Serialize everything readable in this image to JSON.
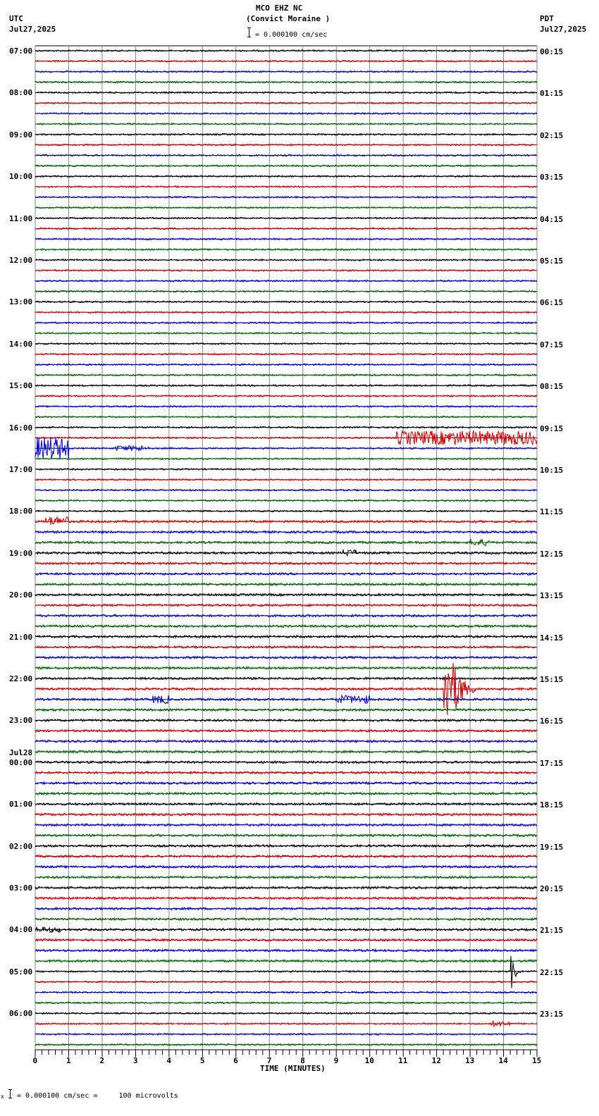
{
  "header": {
    "station": "MCO EHZ NC",
    "location": "(Convict Moraine )",
    "scale_text": "= 0.000100 cm/sec",
    "left_tz": "UTC",
    "left_date": "Jul27,2025",
    "right_tz": "PDT",
    "right_date": "Jul27,2025"
  },
  "footer": {
    "scale_prefix": "x",
    "scale_text": "= 0.000100 cm/sec =     100 microvolts"
  },
  "chart_data": {
    "type": "line",
    "title": "MCO EHZ NC (Convict Moraine ) helicorder",
    "xlabel": "TIME (MINUTES)",
    "ylabel": "",
    "xlim": [
      0,
      15
    ],
    "x_ticks": [
      "0",
      "1",
      "2",
      "3",
      "4",
      "5",
      "6",
      "7",
      "8",
      "9",
      "10",
      "11",
      "12",
      "13",
      "14",
      "15"
    ],
    "traces_per_hour": 4,
    "minutes_per_trace": 15,
    "trace_colors": [
      "#000000",
      "#cc0000",
      "#0000cc",
      "#006400"
    ],
    "left_labels": [
      {
        "row": 0,
        "text": "07:00"
      },
      {
        "row": 4,
        "text": "08:00"
      },
      {
        "row": 8,
        "text": "09:00"
      },
      {
        "row": 12,
        "text": "10:00"
      },
      {
        "row": 16,
        "text": "11:00"
      },
      {
        "row": 20,
        "text": "12:00"
      },
      {
        "row": 24,
        "text": "13:00"
      },
      {
        "row": 28,
        "text": "14:00"
      },
      {
        "row": 32,
        "text": "15:00"
      },
      {
        "row": 36,
        "text": "16:00"
      },
      {
        "row": 40,
        "text": "17:00"
      },
      {
        "row": 44,
        "text": "18:00"
      },
      {
        "row": 48,
        "text": "19:00"
      },
      {
        "row": 52,
        "text": "20:00"
      },
      {
        "row": 56,
        "text": "21:00"
      },
      {
        "row": 60,
        "text": "22:00"
      },
      {
        "row": 64,
        "text": "23:00"
      },
      {
        "row": 68,
        "text": "00:00",
        "date": "Jul28"
      },
      {
        "row": 72,
        "text": "01:00"
      },
      {
        "row": 76,
        "text": "02:00"
      },
      {
        "row": 80,
        "text": "03:00"
      },
      {
        "row": 84,
        "text": "04:00"
      },
      {
        "row": 88,
        "text": "05:00"
      },
      {
        "row": 92,
        "text": "06:00"
      }
    ],
    "right_labels": [
      {
        "row": 0,
        "text": "00:15"
      },
      {
        "row": 4,
        "text": "01:15"
      },
      {
        "row": 8,
        "text": "02:15"
      },
      {
        "row": 12,
        "text": "03:15"
      },
      {
        "row": 16,
        "text": "04:15"
      },
      {
        "row": 20,
        "text": "05:15"
      },
      {
        "row": 24,
        "text": "06:15"
      },
      {
        "row": 28,
        "text": "07:15"
      },
      {
        "row": 32,
        "text": "08:15"
      },
      {
        "row": 36,
        "text": "09:15"
      },
      {
        "row": 40,
        "text": "10:15"
      },
      {
        "row": 44,
        "text": "11:15"
      },
      {
        "row": 48,
        "text": "12:15"
      },
      {
        "row": 52,
        "text": "13:15"
      },
      {
        "row": 56,
        "text": "14:15"
      },
      {
        "row": 60,
        "text": "15:15"
      },
      {
        "row": 64,
        "text": "16:15"
      },
      {
        "row": 68,
        "text": "17:15"
      },
      {
        "row": 72,
        "text": "18:15"
      },
      {
        "row": 76,
        "text": "19:15"
      },
      {
        "row": 80,
        "text": "20:15"
      },
      {
        "row": 84,
        "text": "21:15"
      },
      {
        "row": 88,
        "text": "22:15"
      },
      {
        "row": 92,
        "text": "23:15"
      }
    ],
    "events": [
      {
        "row": 37,
        "start_min": 10.8,
        "end_min": 15.0,
        "amp": 10,
        "note": "red burst 16:15 UTC"
      },
      {
        "row": 38,
        "start_min": 0.0,
        "end_min": 1.0,
        "amp": 16,
        "note": "large blue burst 16:30 UTC"
      },
      {
        "row": 38,
        "start_min": 2.4,
        "end_min": 3.4,
        "amp": 4
      },
      {
        "row": 45,
        "start_min": 0.3,
        "end_min": 1.0,
        "amp": 7
      },
      {
        "row": 61,
        "start_min": 12.2,
        "end_min": 13.2,
        "amp": 60,
        "note": "local earthquake ~22:30 UTC"
      },
      {
        "row": 62,
        "start_min": 9.0,
        "end_min": 10.0,
        "amp": 6
      },
      {
        "row": 62,
        "start_min": 3.5,
        "end_min": 4.0,
        "amp": 6
      },
      {
        "row": 88,
        "start_min": 14.2,
        "end_min": 14.5,
        "amp": 30,
        "note": "spike ~05:14 UTC Jul28"
      },
      {
        "row": 84,
        "start_min": 0.0,
        "end_min": 0.8,
        "amp": 4
      },
      {
        "row": 47,
        "start_min": 13.0,
        "end_min": 13.6,
        "amp": 5
      },
      {
        "row": 48,
        "start_min": 9.2,
        "end_min": 9.6,
        "amp": 5
      },
      {
        "row": 93,
        "start_min": 13.6,
        "end_min": 14.2,
        "amp": 4
      }
    ]
  }
}
